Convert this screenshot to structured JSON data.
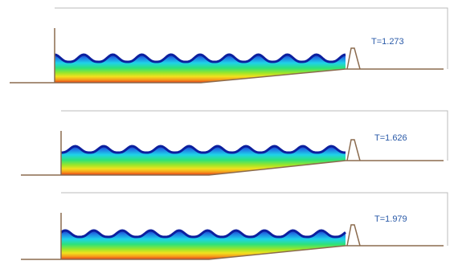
{
  "panels": [
    {
      "time_label": "T=1.273",
      "time": 1.273
    },
    {
      "time_label": "T=1.626",
      "time": 1.626
    },
    {
      "time_label": "T=1.979",
      "time": 1.979
    }
  ],
  "colors": {
    "wall": "#8b6b4e",
    "frame": "#bbbbbb",
    "label": "#2a5aa8",
    "field_bands": [
      "#1c34c8",
      "#1f7fe6",
      "#1fd3e8",
      "#2ee27a",
      "#9be62a",
      "#f2e21e",
      "#f59a1c",
      "#e53a16"
    ]
  }
}
